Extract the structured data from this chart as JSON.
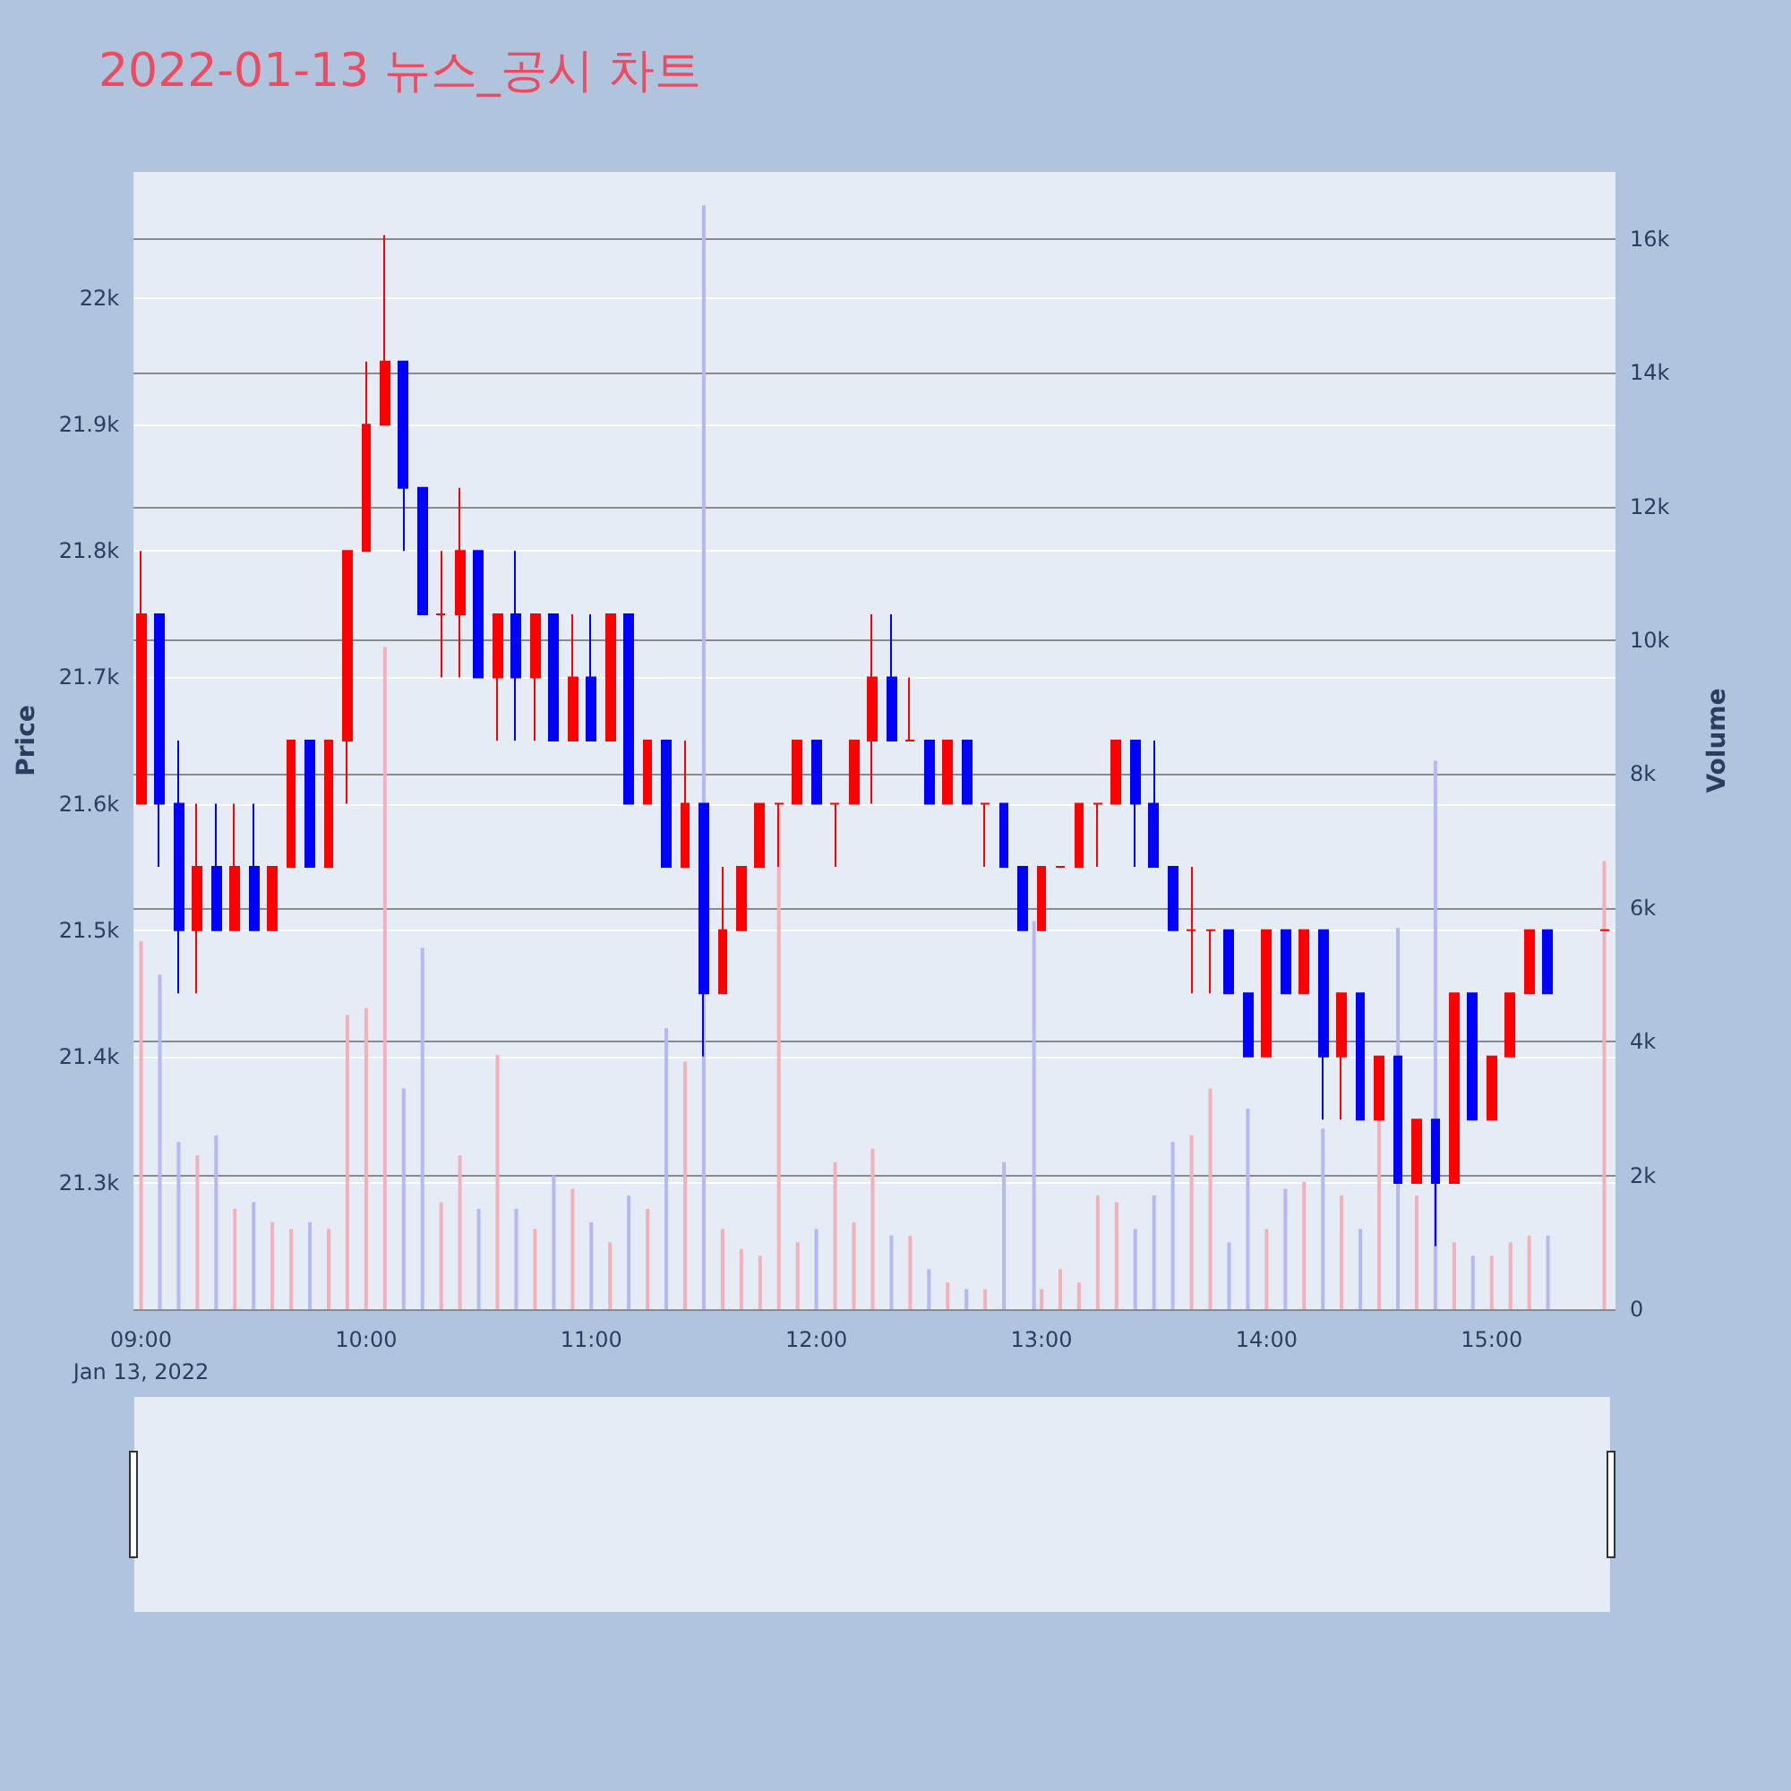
{
  "chart_data": {
    "type": "candlestick",
    "title": "2022-01-13 뉴스_공시 차트",
    "ylabel": "Price",
    "y2label": "Volume",
    "x": [
      "2022-01-13T09:00",
      "2022-01-13T09:05",
      "2022-01-13T09:10",
      "2022-01-13T09:15",
      "2022-01-13T09:20",
      "2022-01-13T09:25",
      "2022-01-13T09:30",
      "2022-01-13T09:35",
      "2022-01-13T09:40",
      "2022-01-13T09:45",
      "2022-01-13T09:50",
      "2022-01-13T09:55",
      "2022-01-13T10:00",
      "2022-01-13T10:05",
      "2022-01-13T10:10",
      "2022-01-13T10:15",
      "2022-01-13T10:20",
      "2022-01-13T10:25",
      "2022-01-13T10:30",
      "2022-01-13T10:35",
      "2022-01-13T10:40",
      "2022-01-13T10:45",
      "2022-01-13T10:50",
      "2022-01-13T10:55",
      "2022-01-13T11:00",
      "2022-01-13T11:05",
      "2022-01-13T11:10",
      "2022-01-13T11:15",
      "2022-01-13T11:20",
      "2022-01-13T11:25",
      "2022-01-13T11:30",
      "2022-01-13T11:35",
      "2022-01-13T11:40",
      "2022-01-13T11:45",
      "2022-01-13T11:50",
      "2022-01-13T11:55",
      "2022-01-13T12:00",
      "2022-01-13T12:05",
      "2022-01-13T12:10",
      "2022-01-13T12:15",
      "2022-01-13T12:20",
      "2022-01-13T12:25",
      "2022-01-13T12:30",
      "2022-01-13T12:35",
      "2022-01-13T12:40",
      "2022-01-13T12:45",
      "2022-01-13T12:50",
      "2022-01-13T12:55",
      "2022-01-13T13:00",
      "2022-01-13T13:05",
      "2022-01-13T13:10",
      "2022-01-13T13:15",
      "2022-01-13T13:20",
      "2022-01-13T13:25",
      "2022-01-13T13:30",
      "2022-01-13T13:35",
      "2022-01-13T13:40",
      "2022-01-13T13:45",
      "2022-01-13T13:50",
      "2022-01-13T13:55",
      "2022-01-13T14:00",
      "2022-01-13T14:05",
      "2022-01-13T14:10",
      "2022-01-13T14:15",
      "2022-01-13T14:20",
      "2022-01-13T14:25",
      "2022-01-13T14:30",
      "2022-01-13T14:35",
      "2022-01-13T14:40",
      "2022-01-13T14:45",
      "2022-01-13T14:50",
      "2022-01-13T14:55",
      "2022-01-13T15:00",
      "2022-01-13T15:05",
      "2022-01-13T15:10",
      "2022-01-13T15:15",
      "2022-01-13T15:30"
    ],
    "ohlc": [
      [
        21600,
        21800,
        21600,
        21750
      ],
      [
        21750,
        21750,
        21550,
        21600
      ],
      [
        21600,
        21650,
        21450,
        21500
      ],
      [
        21500,
        21600,
        21450,
        21550
      ],
      [
        21550,
        21600,
        21500,
        21500
      ],
      [
        21500,
        21600,
        21500,
        21550
      ],
      [
        21550,
        21600,
        21500,
        21500
      ],
      [
        21500,
        21550,
        21500,
        21550
      ],
      [
        21550,
        21650,
        21550,
        21650
      ],
      [
        21650,
        21650,
        21550,
        21550
      ],
      [
        21550,
        21650,
        21550,
        21650
      ],
      [
        21650,
        21800,
        21600,
        21800
      ],
      [
        21800,
        21950,
        21800,
        21900
      ],
      [
        21900,
        22050,
        21900,
        21950
      ],
      [
        21950,
        21950,
        21800,
        21850
      ],
      [
        21850,
        21850,
        21750,
        21750
      ],
      [
        21750,
        21800,
        21700,
        21750
      ],
      [
        21750,
        21850,
        21700,
        21800
      ],
      [
        21800,
        21800,
        21700,
        21700
      ],
      [
        21700,
        21750,
        21650,
        21750
      ],
      [
        21750,
        21800,
        21650,
        21700
      ],
      [
        21700,
        21750,
        21650,
        21750
      ],
      [
        21750,
        21750,
        21650,
        21650
      ],
      [
        21650,
        21750,
        21650,
        21700
      ],
      [
        21700,
        21750,
        21650,
        21650
      ],
      [
        21650,
        21750,
        21650,
        21750
      ],
      [
        21750,
        21750,
        21600,
        21600
      ],
      [
        21600,
        21650,
        21600,
        21650
      ],
      [
        21650,
        21650,
        21550,
        21550
      ],
      [
        21550,
        21650,
        21550,
        21600
      ],
      [
        21600,
        21600,
        21400,
        21450
      ],
      [
        21450,
        21550,
        21450,
        21500
      ],
      [
        21500,
        21550,
        21500,
        21550
      ],
      [
        21550,
        21600,
        21550,
        21600
      ],
      [
        21600,
        21600,
        21550,
        21600
      ],
      [
        21600,
        21650,
        21600,
        21650
      ],
      [
        21650,
        21650,
        21600,
        21600
      ],
      [
        21600,
        21600,
        21550,
        21600
      ],
      [
        21600,
        21650,
        21600,
        21650
      ],
      [
        21650,
        21750,
        21600,
        21700
      ],
      [
        21700,
        21750,
        21650,
        21650
      ],
      [
        21650,
        21700,
        21650,
        21650
      ],
      [
        21650,
        21650,
        21600,
        21600
      ],
      [
        21600,
        21650,
        21600,
        21650
      ],
      [
        21650,
        21650,
        21600,
        21600
      ],
      [
        21600,
        21600,
        21550,
        21600
      ],
      [
        21600,
        21600,
        21550,
        21550
      ],
      [
        21550,
        21550,
        21500,
        21500
      ],
      [
        21500,
        21550,
        21500,
        21550
      ],
      [
        21550,
        21550,
        21550,
        21550
      ],
      [
        21550,
        21600,
        21550,
        21600
      ],
      [
        21600,
        21600,
        21550,
        21600
      ],
      [
        21600,
        21650,
        21600,
        21650
      ],
      [
        21650,
        21650,
        21550,
        21600
      ],
      [
        21600,
        21650,
        21550,
        21550
      ],
      [
        21550,
        21550,
        21500,
        21500
      ],
      [
        21500,
        21550,
        21450,
        21500
      ],
      [
        21500,
        21500,
        21450,
        21500
      ],
      [
        21500,
        21500,
        21450,
        21450
      ],
      [
        21450,
        21450,
        21400,
        21400
      ],
      [
        21400,
        21500,
        21400,
        21500
      ],
      [
        21500,
        21500,
        21450,
        21450
      ],
      [
        21450,
        21500,
        21450,
        21500
      ],
      [
        21500,
        21500,
        21350,
        21400
      ],
      [
        21400,
        21450,
        21350,
        21450
      ],
      [
        21450,
        21450,
        21350,
        21350
      ],
      [
        21350,
        21400,
        21350,
        21400
      ],
      [
        21400,
        21400,
        21300,
        21300
      ],
      [
        21300,
        21350,
        21300,
        21350
      ],
      [
        21350,
        21350,
        21250,
        21300
      ],
      [
        21300,
        21450,
        21300,
        21450
      ],
      [
        21450,
        21450,
        21350,
        21350
      ],
      [
        21350,
        21400,
        21350,
        21400
      ],
      [
        21400,
        21450,
        21400,
        21450
      ],
      [
        21450,
        21500,
        21450,
        21500
      ],
      [
        21500,
        21500,
        21450,
        21450
      ],
      [
        21500,
        21500,
        21500,
        21500
      ]
    ],
    "colors": [
      "#ff0000",
      "#0000ff",
      "#0000ff",
      "#ff0000",
      "#0000ff",
      "#ff0000",
      "#0000ff",
      "#ff0000",
      "#ff0000",
      "#0000ff",
      "#ff0000",
      "#ff0000",
      "#ff0000",
      "#ff0000",
      "#0000ff",
      "#0000ff",
      "#ff0000",
      "#ff0000",
      "#0000ff",
      "#ff0000",
      "#0000ff",
      "#ff0000",
      "#0000ff",
      "#ff0000",
      "#0000ff",
      "#ff0000",
      "#0000ff",
      "#ff0000",
      "#0000ff",
      "#ff0000",
      "#0000ff",
      "#ff0000",
      "#ff0000",
      "#ff0000",
      "#ff0000",
      "#ff0000",
      "#0000ff",
      "#ff0000",
      "#ff0000",
      "#ff0000",
      "#0000ff",
      "#ff0000",
      "#0000ff",
      "#ff0000",
      "#0000ff",
      "#ff0000",
      "#0000ff",
      "#0000ff",
      "#ff0000",
      "#ff0000",
      "#ff0000",
      "#ff0000",
      "#ff0000",
      "#0000ff",
      "#0000ff",
      "#0000ff",
      "#ff0000",
      "#ff0000",
      "#0000ff",
      "#0000ff",
      "#ff0000",
      "#0000ff",
      "#ff0000",
      "#0000ff",
      "#ff0000",
      "#0000ff",
      "#ff0000",
      "#0000ff",
      "#ff0000",
      "#0000ff",
      "#ff0000",
      "#0000ff",
      "#ff0000",
      "#ff0000",
      "#ff0000",
      "#0000ff",
      "#ff0000"
    ],
    "series": [
      {
        "type": "bar",
        "axis": "y2",
        "x": [
          "2022-01-13T09:00",
          "2022-01-13T09:05",
          "2022-01-13T09:10",
          "2022-01-13T09:15",
          "2022-01-13T09:20",
          "2022-01-13T09:25",
          "2022-01-13T09:30",
          "2022-01-13T09:35",
          "2022-01-13T09:40",
          "2022-01-13T09:45",
          "2022-01-13T09:50",
          "2022-01-13T09:55",
          "2022-01-13T10:00",
          "2022-01-13T10:05",
          "2022-01-13T10:10",
          "2022-01-13T10:15",
          "2022-01-13T10:20",
          "2022-01-13T10:25",
          "2022-01-13T10:30",
          "2022-01-13T10:35",
          "2022-01-13T10:40",
          "2022-01-13T10:45",
          "2022-01-13T10:50",
          "2022-01-13T10:55",
          "2022-01-13T11:00",
          "2022-01-13T11:05",
          "2022-01-13T11:10",
          "2022-01-13T11:15",
          "2022-01-13T11:20",
          "2022-01-13T11:25",
          "2022-01-13T11:30",
          "2022-01-13T11:35",
          "2022-01-13T11:40",
          "2022-01-13T11:45",
          "2022-01-13T11:50",
          "2022-01-13T11:55",
          "2022-01-13T12:00",
          "2022-01-13T12:05",
          "2022-01-13T12:10",
          "2022-01-13T12:15",
          "2022-01-13T12:20",
          "2022-01-13T12:25",
          "2022-01-13T12:30",
          "2022-01-13T12:35",
          "2022-01-13T12:40",
          "2022-01-13T12:45",
          "2022-01-13T12:50",
          "2022-01-13T12:58",
          "2022-01-13T13:00",
          "2022-01-13T13:05",
          "2022-01-13T13:10",
          "2022-01-13T13:15",
          "2022-01-13T13:20",
          "2022-01-13T13:25",
          "2022-01-13T13:30",
          "2022-01-13T13:35",
          "2022-01-13T13:40",
          "2022-01-13T13:45",
          "2022-01-13T13:50",
          "2022-01-13T13:55",
          "2022-01-13T14:00",
          "2022-01-13T14:05",
          "2022-01-13T14:10",
          "2022-01-13T14:15",
          "2022-01-13T14:20",
          "2022-01-13T14:25",
          "2022-01-13T14:30",
          "2022-01-13T14:35",
          "2022-01-13T14:40",
          "2022-01-13T14:45",
          "2022-01-13T14:50",
          "2022-01-13T14:55",
          "2022-01-13T15:00",
          "2022-01-13T15:05",
          "2022-01-13T15:10",
          "2022-01-13T15:15",
          "2022-01-13T15:30"
        ],
        "values": [
          5500,
          5000,
          2500,
          2300,
          2600,
          1500,
          1600,
          1300,
          1200,
          1300,
          1200,
          4400,
          4500,
          9900,
          3300,
          5400,
          1600,
          2300,
          1500,
          3800,
          1500,
          1200,
          2000,
          1800,
          1300,
          1000,
          1700,
          1500,
          4200,
          3700,
          16500,
          1200,
          900,
          800,
          7500,
          1000,
          1200,
          2200,
          1300,
          2400,
          1100,
          1100,
          600,
          400,
          300,
          300,
          2200,
          5800,
          300,
          600,
          400,
          1700,
          1600,
          1200,
          1700,
          2500,
          2600,
          3300,
          1000,
          3000,
          1200,
          1800,
          1900,
          2700,
          1700,
          1200,
          2900,
          5700,
          1700,
          8200,
          1000,
          800,
          800,
          1000,
          1100,
          1100,
          6700
        ],
        "colors": [
          "#f4b0b8",
          "#b4b8f4",
          "#b4b8f4",
          "#f4b0b8",
          "#b4b8f4",
          "#f4b0b8",
          "#b4b8f4",
          "#f4b0b8",
          "#f4b0b8",
          "#b4b8f4",
          "#f4b0b8",
          "#f4b0b8",
          "#f4b0b8",
          "#f4b0b8",
          "#b4b8f4",
          "#b4b8f4",
          "#f4b0b8",
          "#f4b0b8",
          "#b4b8f4",
          "#f4b0b8",
          "#b4b8f4",
          "#f4b0b8",
          "#b4b8f4",
          "#f4b0b8",
          "#b4b8f4",
          "#f4b0b8",
          "#b4b8f4",
          "#f4b0b8",
          "#b4b8f4",
          "#f4b0b8",
          "#b4b8f4",
          "#f4b0b8",
          "#f4b0b8",
          "#f4b0b8",
          "#f4b0b8",
          "#f4b0b8",
          "#b4b8f4",
          "#f4b0b8",
          "#f4b0b8",
          "#f4b0b8",
          "#b4b8f4",
          "#f4b0b8",
          "#b4b8f4",
          "#f4b0b8",
          "#b4b8f4",
          "#f4b0b8",
          "#b4b8f4",
          "#b4b8f4",
          "#f4b0b8",
          "#f4b0b8",
          "#f4b0b8",
          "#f4b0b8",
          "#f4b0b8",
          "#b4b8f4",
          "#b4b8f4",
          "#b4b8f4",
          "#f4b0b8",
          "#f4b0b8",
          "#b4b8f4",
          "#b4b8f4",
          "#f4b0b8",
          "#b4b8f4",
          "#f4b0b8",
          "#b4b8f4",
          "#f4b0b8",
          "#b4b8f4",
          "#f4b0b8",
          "#b4b8f4",
          "#f4b0b8",
          "#b4b8f4",
          "#f4b0b8",
          "#b4b8f4",
          "#f4b0b8",
          "#f4b0b8",
          "#f4b0b8",
          "#b4b8f4",
          "#f4b0b8"
        ]
      }
    ],
    "xlim": [
      "2022-01-13T08:58",
      "2022-01-13T15:33"
    ],
    "xticks": [
      {
        "value": "2022-01-13T09:00",
        "label": "09:00\nJan 13, 2022"
      },
      {
        "value": "2022-01-13T10:00",
        "label": "10:00"
      },
      {
        "value": "2022-01-13T11:00",
        "label": "11:00"
      },
      {
        "value": "2022-01-13T12:00",
        "label": "12:00"
      },
      {
        "value": "2022-01-13T13:00",
        "label": "13:00"
      },
      {
        "value": "2022-01-13T14:00",
        "label": "14:00"
      },
      {
        "value": "2022-01-13T15:00",
        "label": "15:00"
      }
    ],
    "ylim": [
      21200,
      22100
    ],
    "yticks": [
      {
        "value": 21300,
        "label": "21.3k"
      },
      {
        "value": 21400,
        "label": "21.4k"
      },
      {
        "value": 21500,
        "label": "21.5k"
      },
      {
        "value": 21600,
        "label": "21.6k"
      },
      {
        "value": 21700,
        "label": "21.7k"
      },
      {
        "value": 21800,
        "label": "21.8k"
      },
      {
        "value": 21900,
        "label": "21.9k"
      },
      {
        "value": 22000,
        "label": "22k"
      }
    ],
    "y2lim": [
      0,
      17000
    ],
    "y2ticks": [
      0,
      {
        "value": 2000,
        "label": "2k"
      },
      {
        "value": 4000,
        "label": "4k"
      },
      {
        "value": 6000,
        "label": "6k"
      },
      {
        "value": 8000,
        "label": "8k"
      },
      {
        "value": 10000,
        "label": "10k"
      },
      {
        "value": 12000,
        "label": "12k"
      },
      {
        "value": 14000,
        "label": "14k"
      },
      {
        "value": 16000,
        "label": "16k"
      }
    ],
    "grid": "y"
  }
}
